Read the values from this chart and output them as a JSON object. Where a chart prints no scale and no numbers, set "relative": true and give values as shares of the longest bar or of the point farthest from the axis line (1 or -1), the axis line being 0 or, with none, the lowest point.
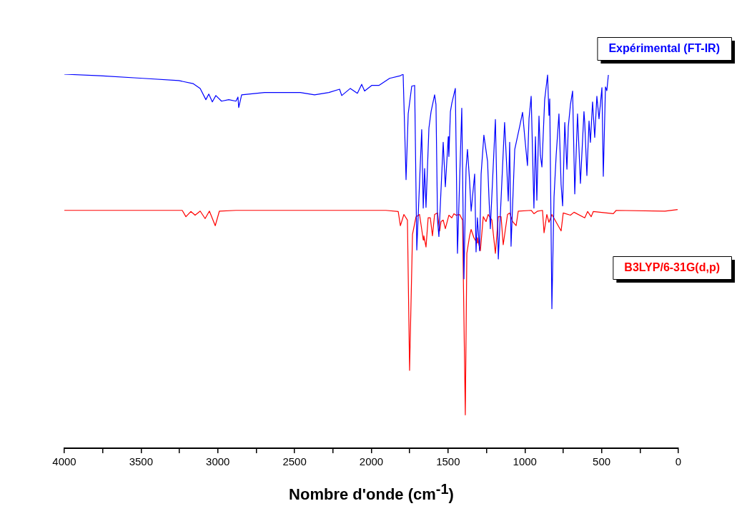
{
  "chart_data": {
    "type": "line",
    "xlabel": "Nombre d'onde (cm$^{-1}$)",
    "relative": true,
    "xlim": [
      4000,
      0
    ],
    "xticks": [
      4000,
      {
        "value": 3750,
        "label": null
      },
      3500,
      {
        "value": 3250,
        "label": null
      },
      3000,
      {
        "value": 2750,
        "label": null
      },
      2500,
      {
        "value": 2250,
        "label": null
      },
      2000,
      {
        "value": 1750,
        "label": null
      },
      1500,
      {
        "value": 1250,
        "label": null
      },
      1000,
      {
        "value": 750,
        "label": null
      },
      500,
      {
        "value": 250,
        "label": null
      },
      0
    ],
    "grid": false,
    "legend": "right",
    "marker": "none",
    "line_style": "solid",
    "tick_labels": "x",
    "series": [
      {
        "name": "Expérimental (FT-IR)",
        "color": "#0000ff",
        "x": [
          4000,
          3767,
          3488,
          3255,
          3162,
          3115,
          3078,
          3059,
          3036,
          3013,
          2976,
          2929,
          2882,
          2869,
          2864,
          2845,
          2696,
          2463,
          2370,
          2277,
          2207,
          2193,
          2137,
          2091,
          2063,
          2044,
          1998,
          1951,
          1881,
          1811,
          1793,
          1774,
          1760,
          1737,
          1718,
          1704,
          1672,
          1662,
          1653,
          1644,
          1625,
          1611,
          1588,
          1579,
          1569,
          1560,
          1532,
          1518,
          1499,
          1495,
          1485,
          1476,
          1453,
          1439,
          1411,
          1397,
          1383,
          1374,
          1360,
          1350,
          1327,
          1318,
          1309,
          1295,
          1285,
          1267,
          1243,
          1234,
          1225,
          1192,
          1173,
          1132,
          1118,
          1108,
          1099,
          1090,
          1066,
          1034,
          1015,
          1001,
          983,
          973,
          959,
          941,
          931,
          922,
          908,
          899,
          889,
          871,
          852,
          843,
          838,
          824,
          810,
          796,
          778,
          764,
          754,
          740,
          726,
          717,
          703,
          689,
          675,
          657,
          638,
          615,
          610,
          596,
          582,
          573,
          559,
          545,
          531,
          517,
          498,
          489,
          475,
          466,
          456
        ],
        "values": [
          1.0,
          0.996,
          0.989,
          0.983,
          0.975,
          0.962,
          0.932,
          0.947,
          0.926,
          0.943,
          0.928,
          0.932,
          0.928,
          0.939,
          0.911,
          0.945,
          0.951,
          0.951,
          0.945,
          0.951,
          0.96,
          0.943,
          0.962,
          0.949,
          0.973,
          0.955,
          0.97,
          0.97,
          0.989,
          0.996,
          1.0,
          0.718,
          0.894,
          0.968,
          0.97,
          0.53,
          0.852,
          0.642,
          0.748,
          0.644,
          0.856,
          0.9,
          0.945,
          0.919,
          0.61,
          0.566,
          0.818,
          0.699,
          0.833,
          0.78,
          0.9,
          0.922,
          0.962,
          0.521,
          0.909,
          0.453,
          0.748,
          0.799,
          0.714,
          0.634,
          0.733,
          0.525,
          0.616,
          0.528,
          0.733,
          0.837,
          0.767,
          0.672,
          0.587,
          0.879,
          0.506,
          0.871,
          0.752,
          0.661,
          0.818,
          0.54,
          0.799,
          0.86,
          0.898,
          0.833,
          0.756,
          0.881,
          0.941,
          0.642,
          0.833,
          0.663,
          0.888,
          0.784,
          0.752,
          0.932,
          0.998,
          0.89,
          0.934,
          0.373,
          0.672,
          0.784,
          0.894,
          0.705,
          0.648,
          0.871,
          0.746,
          0.86,
          0.919,
          0.955,
          0.68,
          0.894,
          0.708,
          0.9,
          0.871,
          0.729,
          0.875,
          0.818,
          0.926,
          0.831,
          0.941,
          0.881,
          0.964,
          0.727,
          0.966,
          0.956,
          0.998
        ]
      },
      {
        "name": "B3LYP/6-31G(d,p)",
        "color": "#ff0000",
        "x": [
          4000,
          3232,
          3208,
          3176,
          3148,
          3115,
          3083,
          3055,
          3017,
          2990,
          2882,
          1905,
          1825,
          1811,
          1788,
          1765,
          1751,
          1732,
          1709,
          1686,
          1662,
          1658,
          1644,
          1630,
          1616,
          1602,
          1588,
          1569,
          1555,
          1546,
          1532,
          1518,
          1495,
          1476,
          1462,
          1448,
          1425,
          1406,
          1388,
          1378,
          1360,
          1350,
          1332,
          1313,
          1309,
          1290,
          1271,
          1253,
          1239,
          1215,
          1192,
          1173,
          1155,
          1141,
          1113,
          1099,
          1080,
          1057,
          1043,
          959,
          941,
          917,
          885,
          875,
          857,
          843,
          824,
          764,
          750,
          703,
          680,
          610,
          591,
          568,
          554,
          424,
          405,
          88,
          5
        ],
        "values": [
          0.636,
          0.636,
          0.619,
          0.633,
          0.623,
          0.634,
          0.614,
          0.634,
          0.595,
          0.634,
          0.636,
          0.636,
          0.633,
          0.595,
          0.625,
          0.61,
          0.208,
          0.572,
          0.619,
          0.625,
          0.557,
          0.568,
          0.538,
          0.616,
          0.616,
          0.568,
          0.625,
          0.629,
          0.581,
          0.606,
          0.61,
          0.587,
          0.623,
          0.616,
          0.627,
          0.623,
          0.625,
          0.61,
          0.089,
          0.521,
          0.568,
          0.585,
          0.563,
          0.549,
          0.563,
          0.528,
          0.619,
          0.606,
          0.625,
          0.61,
          0.521,
          0.619,
          0.619,
          0.544,
          0.625,
          0.629,
          0.606,
          0.595,
          0.634,
          0.636,
          0.627,
          0.634,
          0.636,
          0.576,
          0.625,
          0.604,
          0.625,
          0.581,
          0.629,
          0.623,
          0.631,
          0.616,
          0.633,
          0.619,
          0.633,
          0.627,
          0.636,
          0.634,
          0.638
        ]
      }
    ]
  }
}
